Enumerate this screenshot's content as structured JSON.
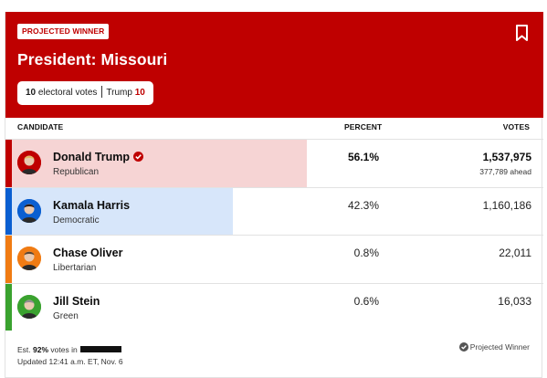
{
  "header": {
    "winner_tag": "PROJECTED WINNER",
    "title": "President: Missouri",
    "electoral": {
      "count": "10",
      "label": "electoral votes",
      "winner": "Trump",
      "winner_votes": "10"
    },
    "bookmark_icon": "bookmark-icon"
  },
  "columns": {
    "candidate": "CANDIDATE",
    "percent": "PERCENT",
    "votes": "VOTES"
  },
  "candidates": [
    {
      "name": "Donald Trump",
      "party": "Republican",
      "percent": "56.1%",
      "percent_value": 56.1,
      "votes": "1,537,975",
      "ahead": "377,789 ahead",
      "winner": true,
      "color": "#bf0000",
      "fill": "#f6d4d4"
    },
    {
      "name": "Kamala Harris",
      "party": "Democratic",
      "percent": "42.3%",
      "percent_value": 42.3,
      "votes": "1,160,186",
      "color": "#0a5fd1",
      "fill": "#d7e6fa"
    },
    {
      "name": "Chase Oliver",
      "party": "Libertarian",
      "percent": "0.8%",
      "percent_value": 0.8,
      "votes": "22,011",
      "color": "#f07b13",
      "fill": "#fde8d4"
    },
    {
      "name": "Jill Stein",
      "party": "Green",
      "percent": "0.6%",
      "percent_value": 0.6,
      "votes": "16,033",
      "color": "#3aa22f",
      "fill": "#dbf0d8"
    }
  ],
  "footer": {
    "est_prefix": "Est.",
    "est_pct": "92%",
    "est_suffix": "votes in",
    "updated": "Updated 12:41 a.m. ET, Nov. 6",
    "legend": "Projected Winner"
  }
}
